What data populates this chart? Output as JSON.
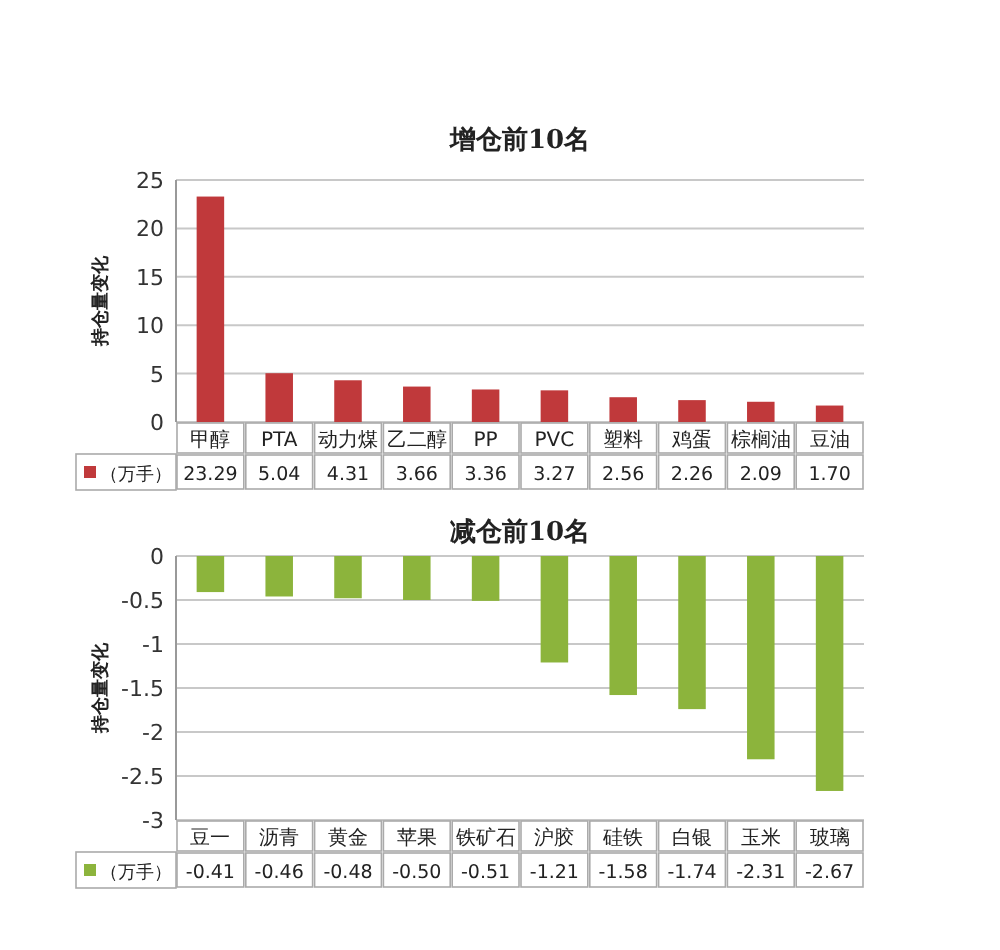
{
  "chart_data": [
    {
      "type": "bar",
      "title": "增仓前10名",
      "ylabel": "持仓量变化",
      "categories": [
        "甲醇",
        "PTA",
        "动力煤",
        "乙二醇",
        "PP",
        "PVC",
        "塑料",
        "鸡蛋",
        "棕榈油",
        "豆油"
      ],
      "series": [
        {
          "name": "（万手）",
          "color": "#c0393b",
          "values": [
            23.29,
            5.04,
            4.31,
            3.66,
            3.36,
            3.27,
            2.56,
            2.26,
            2.09,
            1.7
          ],
          "value_labels": [
            "23.29",
            "5.04",
            "4.31",
            "3.66",
            "3.36",
            "3.27",
            "2.56",
            "2.26",
            "2.09",
            "1.70"
          ]
        }
      ],
      "ylim": [
        0,
        25
      ],
      "yticks": [
        0,
        5,
        10,
        15,
        20,
        25
      ],
      "grid": "y",
      "legend": "bottom"
    },
    {
      "type": "bar",
      "title": "减仓前10名",
      "ylabel": "持仓量变化",
      "categories": [
        "豆一",
        "沥青",
        "黄金",
        "苹果",
        "铁矿石",
        "沪胶",
        "硅铁",
        "白银",
        "玉米",
        "玻璃"
      ],
      "series": [
        {
          "name": "（万手）",
          "color": "#8cb43c",
          "values": [
            -0.41,
            -0.46,
            -0.48,
            -0.5,
            -0.51,
            -1.21,
            -1.58,
            -1.74,
            -2.31,
            -2.67
          ],
          "value_labels": [
            "-0.41",
            "-0.46",
            "-0.48",
            "-0.50",
            "-0.51",
            "-1.21",
            "-1.58",
            "-1.74",
            "-2.31",
            "-2.67"
          ]
        }
      ],
      "ylim": [
        -3,
        0
      ],
      "yticks": [
        {
          "value": 0,
          "label": "0"
        },
        {
          "value": -0.5,
          "label": "-0.5"
        },
        {
          "value": -1,
          "label": "-1"
        },
        {
          "value": -1.5,
          "label": "-1.5"
        },
        {
          "value": -2,
          "label": "-2"
        },
        {
          "value": -2.5,
          "label": "-2.5"
        },
        {
          "value": -3,
          "label": "-3"
        }
      ],
      "grid": "y",
      "legend": "bottom"
    }
  ]
}
